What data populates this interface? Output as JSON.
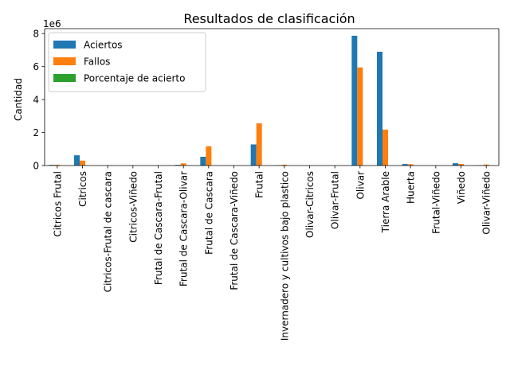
{
  "chart_data": {
    "type": "bar",
    "title": "Resultados de clasificación",
    "xlabel": "",
    "ylabel": "Cantidad",
    "offset_label": "1e6",
    "scale": 1000000,
    "ylim": [
      0,
      8300000
    ],
    "yticks": [
      0,
      2000000,
      4000000,
      6000000,
      8000000
    ],
    "ytick_labels": [
      "0",
      "2",
      "4",
      "6",
      "8"
    ],
    "grid": false,
    "legend_position": "top-left",
    "categories": [
      "Citricos Frutal",
      "Citricos",
      "Citricos-Frutal de cascara",
      "Citricos-Viñedo",
      "Frutal de Cascara-Frutal",
      "Frutal de Cascara-Olivar",
      "Frutal de Cascara",
      "Frutal de Cascara-Viñedo",
      "Frutal",
      "Invernadero y cultivos bajo plastico",
      "Olivar-Citricos",
      "Olivar-Frutal",
      "Olivar",
      "Tierra Arable",
      "Huerta",
      "Frutal-Viñedo",
      "Viñedo",
      "Olivar-Viñedo"
    ],
    "series": [
      {
        "name": "Aciertos",
        "color": "#1f77b4",
        "values": [
          40000,
          620000,
          5000,
          3000,
          5000,
          40000,
          530000,
          3000,
          1280000,
          15000,
          3000,
          3000,
          7870000,
          6900000,
          90000,
          3000,
          140000,
          15000
        ]
      },
      {
        "name": "Fallos",
        "color": "#ff7f0e",
        "values": [
          50000,
          300000,
          10000,
          5000,
          10000,
          130000,
          1170000,
          5000,
          2560000,
          50000,
          10000,
          5000,
          5950000,
          2180000,
          80000,
          5000,
          100000,
          60000
        ]
      },
      {
        "name": "Porcentaje de acierto",
        "color": "#2ca02c",
        "values": [
          50,
          70,
          30,
          40,
          30,
          25,
          30,
          40,
          33,
          25,
          25,
          40,
          57,
          76,
          50,
          40,
          58,
          20
        ]
      }
    ]
  }
}
